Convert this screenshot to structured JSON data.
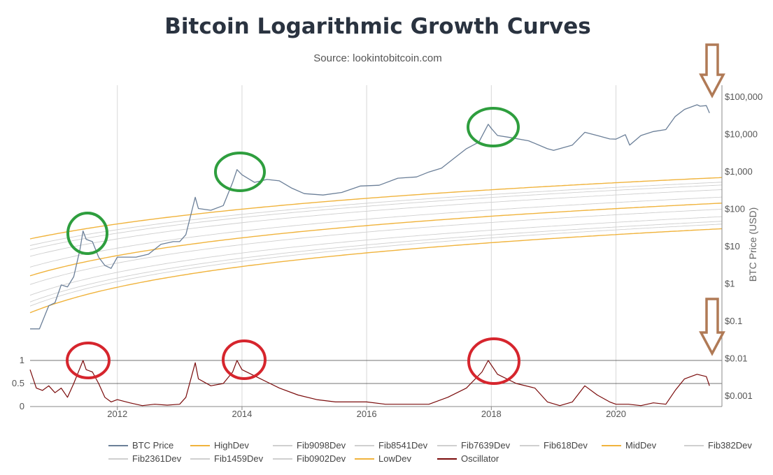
{
  "chart_data": {
    "type": "line",
    "title": "Bitcoin Logarithmic Growth Curves",
    "subtitle": "Source: lookintobitcoin.com",
    "ylabel": "BTC Price (USD)",
    "y_scale": "log",
    "ylim": [
      0.0005,
      200000
    ],
    "xlim": [
      2010.6,
      2021.7
    ],
    "x_ticks": [
      {
        "label": "2012",
        "value": 2012
      },
      {
        "label": "2014",
        "value": 2014
      },
      {
        "label": "2016",
        "value": 2016
      },
      {
        "label": "2018",
        "value": 2018
      },
      {
        "label": "2020",
        "value": 2020
      }
    ],
    "y_ticks": [
      {
        "label": "$100,000",
        "value": 100000
      },
      {
        "label": "$10,000",
        "value": 10000
      },
      {
        "label": "$1,000",
        "value": 1000
      },
      {
        "label": "$100",
        "value": 100
      },
      {
        "label": "$10",
        "value": 10
      },
      {
        "label": "$1",
        "value": 1
      },
      {
        "label": "$0.1",
        "value": 0.1
      },
      {
        "label": "$0.01",
        "value": 0.01
      },
      {
        "label": "$0.001",
        "value": 0.001
      }
    ],
    "oscillator_ticks": [
      {
        "label": "1",
        "value": 1
      },
      {
        "label": "0.5",
        "value": 0.5
      },
      {
        "label": "0",
        "value": 0
      }
    ],
    "series": [
      {
        "name": "BTC Price",
        "color": "#6b7f98",
        "points": [
          [
            2010.6,
            0.06
          ],
          [
            2010.75,
            0.06
          ],
          [
            2010.9,
            0.25
          ],
          [
            2011.0,
            0.3
          ],
          [
            2011.1,
            0.9
          ],
          [
            2011.2,
            0.8
          ],
          [
            2011.3,
            1.5
          ],
          [
            2011.4,
            8
          ],
          [
            2011.45,
            25
          ],
          [
            2011.5,
            15
          ],
          [
            2011.6,
            13
          ],
          [
            2011.7,
            5
          ],
          [
            2011.8,
            3
          ],
          [
            2011.9,
            2.5
          ],
          [
            2012.0,
            5
          ],
          [
            2012.3,
            5
          ],
          [
            2012.5,
            6
          ],
          [
            2012.7,
            11
          ],
          [
            2012.9,
            13
          ],
          [
            2013.0,
            13
          ],
          [
            2013.1,
            20
          ],
          [
            2013.25,
            200
          ],
          [
            2013.3,
            100
          ],
          [
            2013.5,
            90
          ],
          [
            2013.7,
            120
          ],
          [
            2013.85,
            500
          ],
          [
            2013.92,
            1100
          ],
          [
            2014.0,
            800
          ],
          [
            2014.2,
            500
          ],
          [
            2014.4,
            600
          ],
          [
            2014.6,
            550
          ],
          [
            2014.8,
            350
          ],
          [
            2015.0,
            250
          ],
          [
            2015.3,
            230
          ],
          [
            2015.6,
            270
          ],
          [
            2015.9,
            400
          ],
          [
            2016.2,
            420
          ],
          [
            2016.5,
            650
          ],
          [
            2016.8,
            700
          ],
          [
            2017.0,
            950
          ],
          [
            2017.2,
            1200
          ],
          [
            2017.4,
            2200
          ],
          [
            2017.6,
            4000
          ],
          [
            2017.8,
            6000
          ],
          [
            2017.95,
            18000
          ],
          [
            2018.0,
            14000
          ],
          [
            2018.1,
            9000
          ],
          [
            2018.3,
            8000
          ],
          [
            2018.6,
            6500
          ],
          [
            2018.9,
            4000
          ],
          [
            2019.0,
            3600
          ],
          [
            2019.3,
            5000
          ],
          [
            2019.5,
            11000
          ],
          [
            2019.7,
            9000
          ],
          [
            2019.9,
            7300
          ],
          [
            2020.0,
            7200
          ],
          [
            2020.15,
            9500
          ],
          [
            2020.22,
            5000
          ],
          [
            2020.4,
            9000
          ],
          [
            2020.6,
            11500
          ],
          [
            2020.8,
            13000
          ],
          [
            2020.95,
            29000
          ],
          [
            2021.1,
            45000
          ],
          [
            2021.3,
            60000
          ],
          [
            2021.35,
            55000
          ],
          [
            2021.45,
            57000
          ],
          [
            2021.5,
            36000
          ]
        ]
      },
      {
        "name": "HighDev",
        "color": "#f0b33c",
        "dev": 1.0
      },
      {
        "name": "Fib9098Dev",
        "color": "#cfcfcf",
        "dev": 0.9098
      },
      {
        "name": "Fib8541Dev",
        "color": "#cfcfcf",
        "dev": 0.8541
      },
      {
        "name": "Fib7639Dev",
        "color": "#cfcfcf",
        "dev": 0.7639
      },
      {
        "name": "Fib618Dev",
        "color": "#cfcfcf",
        "dev": 0.618
      },
      {
        "name": "MidDev",
        "color": "#f0b33c",
        "dev": 0.5
      },
      {
        "name": "Fib382Dev",
        "color": "#cfcfcf",
        "dev": 0.382
      },
      {
        "name": "Fib2361Dev",
        "color": "#cfcfcf",
        "dev": 0.2361
      },
      {
        "name": "Fib1459Dev",
        "color": "#cfcfcf",
        "dev": 0.1459
      },
      {
        "name": "Fib0902Dev",
        "color": "#cfcfcf",
        "dev": 0.0902
      },
      {
        "name": "LowDev",
        "color": "#f0b33c",
        "dev": 0.0
      },
      {
        "name": "Oscillator",
        "color": "#7a0b0b",
        "points": [
          [
            2010.6,
            0.8
          ],
          [
            2010.7,
            0.4
          ],
          [
            2010.8,
            0.35
          ],
          [
            2010.9,
            0.45
          ],
          [
            2011.0,
            0.3
          ],
          [
            2011.1,
            0.4
          ],
          [
            2011.2,
            0.2
          ],
          [
            2011.3,
            0.5
          ],
          [
            2011.45,
            1.0
          ],
          [
            2011.5,
            0.8
          ],
          [
            2011.6,
            0.75
          ],
          [
            2011.7,
            0.5
          ],
          [
            2011.8,
            0.2
          ],
          [
            2011.9,
            0.1
          ],
          [
            2012.0,
            0.15
          ],
          [
            2012.2,
            0.08
          ],
          [
            2012.4,
            0.02
          ],
          [
            2012.6,
            0.05
          ],
          [
            2012.8,
            0.03
          ],
          [
            2013.0,
            0.05
          ],
          [
            2013.1,
            0.2
          ],
          [
            2013.25,
            0.95
          ],
          [
            2013.3,
            0.6
          ],
          [
            2013.5,
            0.45
          ],
          [
            2013.7,
            0.5
          ],
          [
            2013.85,
            0.75
          ],
          [
            2013.92,
            1.0
          ],
          [
            2014.0,
            0.8
          ],
          [
            2014.3,
            0.6
          ],
          [
            2014.6,
            0.4
          ],
          [
            2014.9,
            0.25
          ],
          [
            2015.2,
            0.15
          ],
          [
            2015.5,
            0.1
          ],
          [
            2015.8,
            0.1
          ],
          [
            2016.0,
            0.1
          ],
          [
            2016.3,
            0.05
          ],
          [
            2016.6,
            0.05
          ],
          [
            2017.0,
            0.05
          ],
          [
            2017.3,
            0.2
          ],
          [
            2017.6,
            0.4
          ],
          [
            2017.85,
            0.75
          ],
          [
            2017.95,
            1.0
          ],
          [
            2018.1,
            0.7
          ],
          [
            2018.4,
            0.5
          ],
          [
            2018.7,
            0.4
          ],
          [
            2018.9,
            0.1
          ],
          [
            2019.1,
            0.02
          ],
          [
            2019.3,
            0.1
          ],
          [
            2019.5,
            0.45
          ],
          [
            2019.7,
            0.25
          ],
          [
            2019.9,
            0.1
          ],
          [
            2020.0,
            0.05
          ],
          [
            2020.2,
            0.05
          ],
          [
            2020.4,
            0.02
          ],
          [
            2020.6,
            0.08
          ],
          [
            2020.8,
            0.05
          ],
          [
            2020.95,
            0.35
          ],
          [
            2021.1,
            0.6
          ],
          [
            2021.3,
            0.7
          ],
          [
            2021.45,
            0.65
          ],
          [
            2021.5,
            0.45
          ]
        ]
      }
    ]
  }
}
